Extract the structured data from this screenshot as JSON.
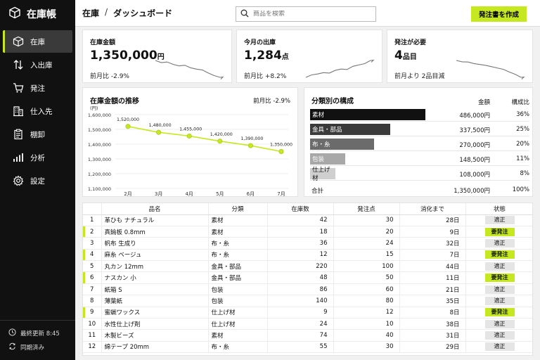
{
  "app": {
    "name": "在庫帳"
  },
  "nav": [
    {
      "label": "在庫",
      "icon": "box-icon",
      "active": true
    },
    {
      "label": "入出庫",
      "icon": "arrows-up-down-icon"
    },
    {
      "label": "発注",
      "icon": "cart-icon"
    },
    {
      "label": "仕入先",
      "icon": "building-icon"
    },
    {
      "label": "棚卸",
      "icon": "clipboard-icon"
    },
    {
      "label": "分析",
      "icon": "bar-chart-icon"
    },
    {
      "label": "設定",
      "icon": "gear-icon"
    }
  ],
  "footer": {
    "last_updated": "最終更新 8:45",
    "sync": "同期済み"
  },
  "header": {
    "crumb_root": "在庫",
    "crumb_sep": "/",
    "crumb_page": "ダッシュボード",
    "search_placeholder": "商品を検索",
    "cta": "発注書を作成"
  },
  "kpis": [
    {
      "title": "在庫金額",
      "value": "1,350,000",
      "unit": "円",
      "delta": "前月比 -2.9%",
      "trend": [
        9,
        8,
        8.3,
        7.2,
        6.5,
        6.8,
        5.6,
        5.0,
        4.6,
        3.2,
        2.0,
        1.2
      ]
    },
    {
      "title": "今月の出庫",
      "value": "1,284",
      "unit": "点",
      "delta": "前月比 +8.2%",
      "trend": [
        1.5,
        2.6,
        3.0,
        3.6,
        3.4,
        4.6,
        5.2,
        5.0,
        6.4,
        7.0,
        7.6,
        9.0
      ]
    },
    {
      "title": "発注が必要",
      "value": "4",
      "unit": "品目",
      "delta": "前月より 2品目減",
      "trend": [
        8.6,
        8.0,
        7.9,
        7.2,
        6.8,
        6.4,
        5.8,
        5.2,
        4.6,
        3.4,
        2.4,
        1.0
      ]
    }
  ],
  "trend": {
    "title": "在庫金額の推移",
    "delta": "前月比 -2.9%",
    "unit_label": "(円)",
    "accent": "#c6e820"
  },
  "chart_data": {
    "type": "line",
    "title": "在庫金額の推移",
    "ylabel": "(円)",
    "categories": [
      "2月",
      "3月",
      "4月",
      "5月",
      "6月",
      "7月"
    ],
    "values": [
      1520000,
      1480000,
      1455000,
      1420000,
      1390000,
      1350000
    ],
    "data_labels": [
      "1,520,000",
      "1,480,000",
      "1,455,000",
      "1,420,000",
      "1,390,000",
      "1,350,000"
    ],
    "ylim": [
      1100000,
      1600000
    ],
    "y_ticks": [
      "1,600,000",
      "1,500,000",
      "1,400,000",
      "1,300,000",
      "1,200,000",
      "1,100,000"
    ],
    "grid": true
  },
  "categories": {
    "title": "分類別の構成",
    "col_amount": "金額",
    "col_ratio": "構成比",
    "rows": [
      {
        "name": "素材",
        "amount": "486,000円",
        "pct": "36%",
        "share": 36,
        "color": "#111111"
      },
      {
        "name": "金具・部品",
        "amount": "337,500円",
        "pct": "25%",
        "share": 25,
        "color": "#3a3a3a"
      },
      {
        "name": "布・糸",
        "amount": "270,000円",
        "pct": "20%",
        "share": 20,
        "color": "#6b6b6b"
      },
      {
        "name": "包装",
        "amount": "148,500円",
        "pct": "11%",
        "share": 11,
        "color": "#a8a8a8"
      },
      {
        "name": "仕上げ材",
        "amount": "108,000円",
        "pct": "8%",
        "share": 8,
        "color": "#cfcfcf",
        "dark_text": true
      }
    ],
    "total_label": "合計",
    "total_amount": "1,350,000円",
    "total_pct": "100%"
  },
  "table": {
    "headers": [
      "",
      "品名",
      "分類",
      "在庫数",
      "発注点",
      "消化まで",
      "状態"
    ],
    "rows": [
      {
        "no": "1",
        "name": "革ひも ナチュラル",
        "cat": "素材",
        "stock": "42",
        "reorder": "30",
        "days": "28日",
        "status": "適正",
        "alert": false
      },
      {
        "no": "2",
        "name": "真鍮板 0.8mm",
        "cat": "素材",
        "stock": "18",
        "reorder": "20",
        "days": "9日",
        "status": "要発注",
        "alert": true
      },
      {
        "no": "3",
        "name": "帆布 生成り",
        "cat": "布・糸",
        "stock": "36",
        "reorder": "24",
        "days": "32日",
        "status": "適正",
        "alert": false
      },
      {
        "no": "4",
        "name": "麻糸 ベージュ",
        "cat": "布・糸",
        "stock": "12",
        "reorder": "15",
        "days": "7日",
        "status": "要発注",
        "alert": true
      },
      {
        "no": "5",
        "name": "丸カン 12mm",
        "cat": "金具・部品",
        "stock": "220",
        "reorder": "100",
        "days": "44日",
        "status": "適正",
        "alert": false
      },
      {
        "no": "6",
        "name": "ナスカン 小",
        "cat": "金具・部品",
        "stock": "48",
        "reorder": "50",
        "days": "11日",
        "status": "要発注",
        "alert": true
      },
      {
        "no": "7",
        "name": "紙箱 S",
        "cat": "包装",
        "stock": "86",
        "reorder": "60",
        "days": "21日",
        "status": "適正",
        "alert": false
      },
      {
        "no": "8",
        "name": "薄葉紙",
        "cat": "包装",
        "stock": "140",
        "reorder": "80",
        "days": "35日",
        "status": "適正",
        "alert": false
      },
      {
        "no": "9",
        "name": "蜜蝋ワックス",
        "cat": "仕上げ材",
        "stock": "9",
        "reorder": "12",
        "days": "8日",
        "status": "要発注",
        "alert": true
      },
      {
        "no": "10",
        "name": "水性仕上げ剤",
        "cat": "仕上げ材",
        "stock": "24",
        "reorder": "10",
        "days": "38日",
        "status": "適正",
        "alert": false
      },
      {
        "no": "11",
        "name": "木製ビーズ",
        "cat": "素材",
        "stock": "74",
        "reorder": "40",
        "days": "31日",
        "status": "適正",
        "alert": false
      },
      {
        "no": "12",
        "name": "綿テープ 20mm",
        "cat": "布・糸",
        "stock": "55",
        "reorder": "30",
        "days": "29日",
        "status": "適正",
        "alert": false
      }
    ]
  }
}
